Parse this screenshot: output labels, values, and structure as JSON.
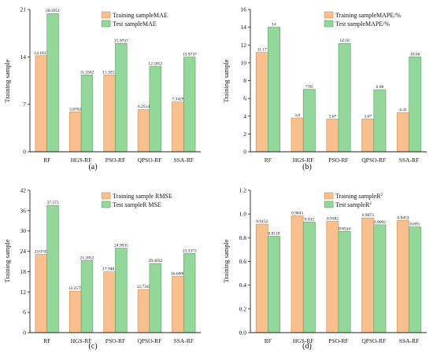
{
  "colors": {
    "training": "#f9c08e",
    "test": "#93d89a",
    "training_stroke": "#c98a55",
    "test_stroke": "#5a9e62"
  },
  "chart_data": [
    {
      "type": "bar",
      "panel": "(a)",
      "categories": [
        "RF",
        "HGS-RF",
        "PSO-RF",
        "QPSO-RF",
        "SSA-RF"
      ],
      "series": [
        {
          "name": "Training sampleMAE",
          "values": [
            14.1817,
            5.8702,
            11.3251,
            6.2514,
            7.3429
          ],
          "labels": [
            "14.1817",
            "5.8702",
            "11.3251",
            "6.2514",
            "7.3429"
          ]
        },
        {
          "name": "Test sampleMAE",
          "values": [
            20.3951,
            11.3362,
            15.9737,
            12.5852,
            13.9737
          ],
          "labels": [
            "20.3951",
            "11.3362",
            "15.9737",
            "12.5852",
            "13.9737"
          ]
        }
      ],
      "ylabel": "Training sample",
      "ylim": [
        0,
        21
      ],
      "yticks": [
        0,
        7,
        14,
        21
      ],
      "legend_position": "top-right"
    },
    {
      "type": "bar",
      "panel": "(b)",
      "categories": [
        "RF",
        "HGS-RF",
        "PSO-RF",
        "QPSO-RF",
        "SSA-RF"
      ],
      "series": [
        {
          "name": "Training sampleMAPE/%",
          "values": [
            11.17,
            3.8,
            3.67,
            3.67,
            4.41
          ],
          "labels": [
            "11.17",
            "3.8",
            "3.67",
            "3.67",
            "4.41"
          ]
        },
        {
          "name": "Test sampleMAPE/%",
          "values": [
            14,
            7.02,
            12.18,
            6.98,
            10.66
          ],
          "labels": [
            "14",
            "7.02",
            "12.18",
            "6.98",
            "10.66"
          ]
        }
      ],
      "ylabel": "Training sample",
      "ylim": [
        0,
        16
      ],
      "yticks": [
        0,
        2,
        4,
        6,
        8,
        10,
        12,
        14,
        16
      ],
      "legend_position": "top-right"
    },
    {
      "type": "bar",
      "panel": "(c)",
      "categories": [
        "RF",
        "HGS-RF",
        "PSO-RF",
        "QPSO-RF",
        "SSA-RF"
      ],
      "series": [
        {
          "name": "Training sample RMSE",
          "values": [
            23.0745,
            12.2575,
            17.9401,
            12.7345,
            16.6008
          ],
          "labels": [
            "23.0745",
            "12.2575",
            "17.9401",
            "12.7345",
            "16.6008"
          ]
        },
        {
          "name": "Test sampleR MSE",
          "values": [
            37.573,
            21.2852,
            24.9035,
            20.4032,
            23.3373
          ],
          "labels": [
            "37.573",
            "21.2852",
            "24.9035",
            "20.4032",
            "23.3373"
          ]
        }
      ],
      "ylabel": "Training sample",
      "ylim": [
        0,
        42
      ],
      "yticks": [
        0,
        6,
        12,
        18,
        24,
        30,
        36,
        42
      ],
      "legend_position": "top-right"
    },
    {
      "type": "bar",
      "panel": "(d)",
      "categories": [
        "RF",
        "HGS-RF",
        "PSO-RF",
        "QPSO-RF",
        "SSA-RF"
      ],
      "series": [
        {
          "name": "Training sampleR",
          "values": [
            0.9152,
            0.9843,
            0.9382,
            0.9673,
            0.9453
          ],
          "labels": [
            "0.9152",
            "0.9843",
            "0.9382",
            "0.9673",
            "0.9453"
          ]
        },
        {
          "name": "Test sampleR",
          "values": [
            0.8118,
            0.932,
            0.8534,
            0.9092,
            0.891
          ],
          "labels": [
            "0.8118",
            "0.932",
            "0.8534",
            "0.9092",
            "0.891"
          ]
        }
      ],
      "legend_superscript": "2",
      "ylabel": "Training sample",
      "ylim": [
        0,
        1.2
      ],
      "yticks": [
        0.0,
        0.2,
        0.4,
        0.6,
        0.8,
        1.0,
        1.2
      ],
      "ytick_labels": [
        "0.0",
        "0.2",
        "0.4",
        "0.6",
        "0.8",
        "1.0",
        "1.2"
      ],
      "legend_position": "top-right"
    }
  ]
}
